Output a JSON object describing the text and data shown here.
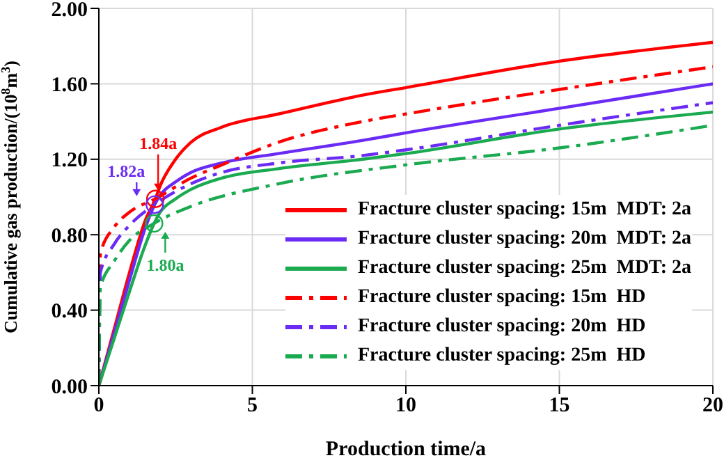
{
  "chart_data": {
    "type": "line",
    "xlabel": "Production time/a",
    "ylabel": "Cumulative gas production/(10$^{8}$m$^{3}$)",
    "xlim": [
      0,
      20
    ],
    "xticks": [
      0,
      5,
      10,
      15,
      20
    ],
    "ylim": [
      0,
      2
    ],
    "yticks": [
      {
        "value": 0,
        "label": "0.00"
      },
      {
        "value": 0.4,
        "label": "0.40"
      },
      {
        "value": 0.8,
        "label": "0.80"
      },
      {
        "value": 1.2,
        "label": "1.20"
      },
      {
        "value": 1.6,
        "label": "1.60"
      },
      {
        "value": 2,
        "label": "2.00"
      }
    ],
    "grid": true,
    "legend": "bottom right",
    "marker": "none",
    "series": [
      {
        "name": "Fracture cluster spacing: 15m  MDT: 2a",
        "color": "#ff0000",
        "line_style": "solid",
        "x": [
          0,
          0.5,
          1,
          1.5,
          1.84,
          2,
          2.5,
          3,
          4,
          5.85,
          8.6,
          10,
          15,
          20
        ],
        "values": [
          0,
          0.3,
          0.6,
          0.87,
          0.99,
          1.06,
          1.2,
          1.29,
          1.37,
          1.44,
          1.54,
          1.58,
          1.72,
          1.82
        ]
      },
      {
        "name": "Fracture cluster spacing: 20m  MDT: 2a",
        "color": "#6a2bf5",
        "line_style": "solid",
        "x": [
          0,
          0.5,
          1,
          1.5,
          1.82,
          2,
          2.5,
          3,
          4,
          5.85,
          8.6,
          10,
          15,
          20
        ],
        "values": [
          0,
          0.28,
          0.56,
          0.83,
          0.96,
          1.01,
          1.08,
          1.13,
          1.18,
          1.23,
          1.3,
          1.34,
          1.47,
          1.6
        ]
      },
      {
        "name": "Fracture cluster spacing: 25m  MDT: 2a",
        "color": "#1aaa50",
        "line_style": "solid",
        "x": [
          0,
          0.5,
          1,
          1.5,
          1.8,
          2,
          2.5,
          3,
          4,
          5.85,
          8.6,
          10,
          15,
          20
        ],
        "values": [
          0,
          0.25,
          0.5,
          0.74,
          0.86,
          0.92,
          0.99,
          1.04,
          1.1,
          1.15,
          1.2,
          1.23,
          1.36,
          1.45
        ]
      },
      {
        "name": "Fracture cluster spacing: 15m  HD",
        "color": "#ff0000",
        "line_style": "dashed",
        "x": [
          0,
          0.05,
          0.5,
          1,
          1.84,
          3,
          4,
          5.85,
          8.6,
          10,
          15,
          20
        ],
        "values": [
          0,
          0.7,
          0.84,
          0.92,
          0.99,
          1.1,
          1.17,
          1.29,
          1.4,
          1.44,
          1.57,
          1.69
        ]
      },
      {
        "name": "Fracture cluster spacing: 20m  HD",
        "color": "#6a2bf5",
        "line_style": "dashed",
        "x": [
          0,
          0.05,
          0.5,
          1,
          1.82,
          3,
          4,
          5.85,
          8.6,
          10,
          15,
          20
        ],
        "values": [
          0,
          0.6,
          0.75,
          0.85,
          0.96,
          1.07,
          1.13,
          1.18,
          1.22,
          1.25,
          1.38,
          1.5
        ]
      },
      {
        "name": "Fracture cluster spacing: 25m  HD",
        "color": "#1aaa50",
        "line_style": "dashed",
        "x": [
          0,
          0.05,
          0.5,
          1,
          1.8,
          3,
          5.85,
          10,
          15,
          20
        ],
        "values": [
          0,
          0.52,
          0.66,
          0.77,
          0.86,
          0.95,
          1.07,
          1.17,
          1.26,
          1.38
        ]
      }
    ],
    "annotations": [
      {
        "text": "1.84a",
        "x": 1.84,
        "y": 0.99
      },
      {
        "text": "1.82a",
        "x": 1.82,
        "y": 0.96
      },
      {
        "text": "1.80a",
        "x": 1.8,
        "y": 0.86
      }
    ]
  }
}
